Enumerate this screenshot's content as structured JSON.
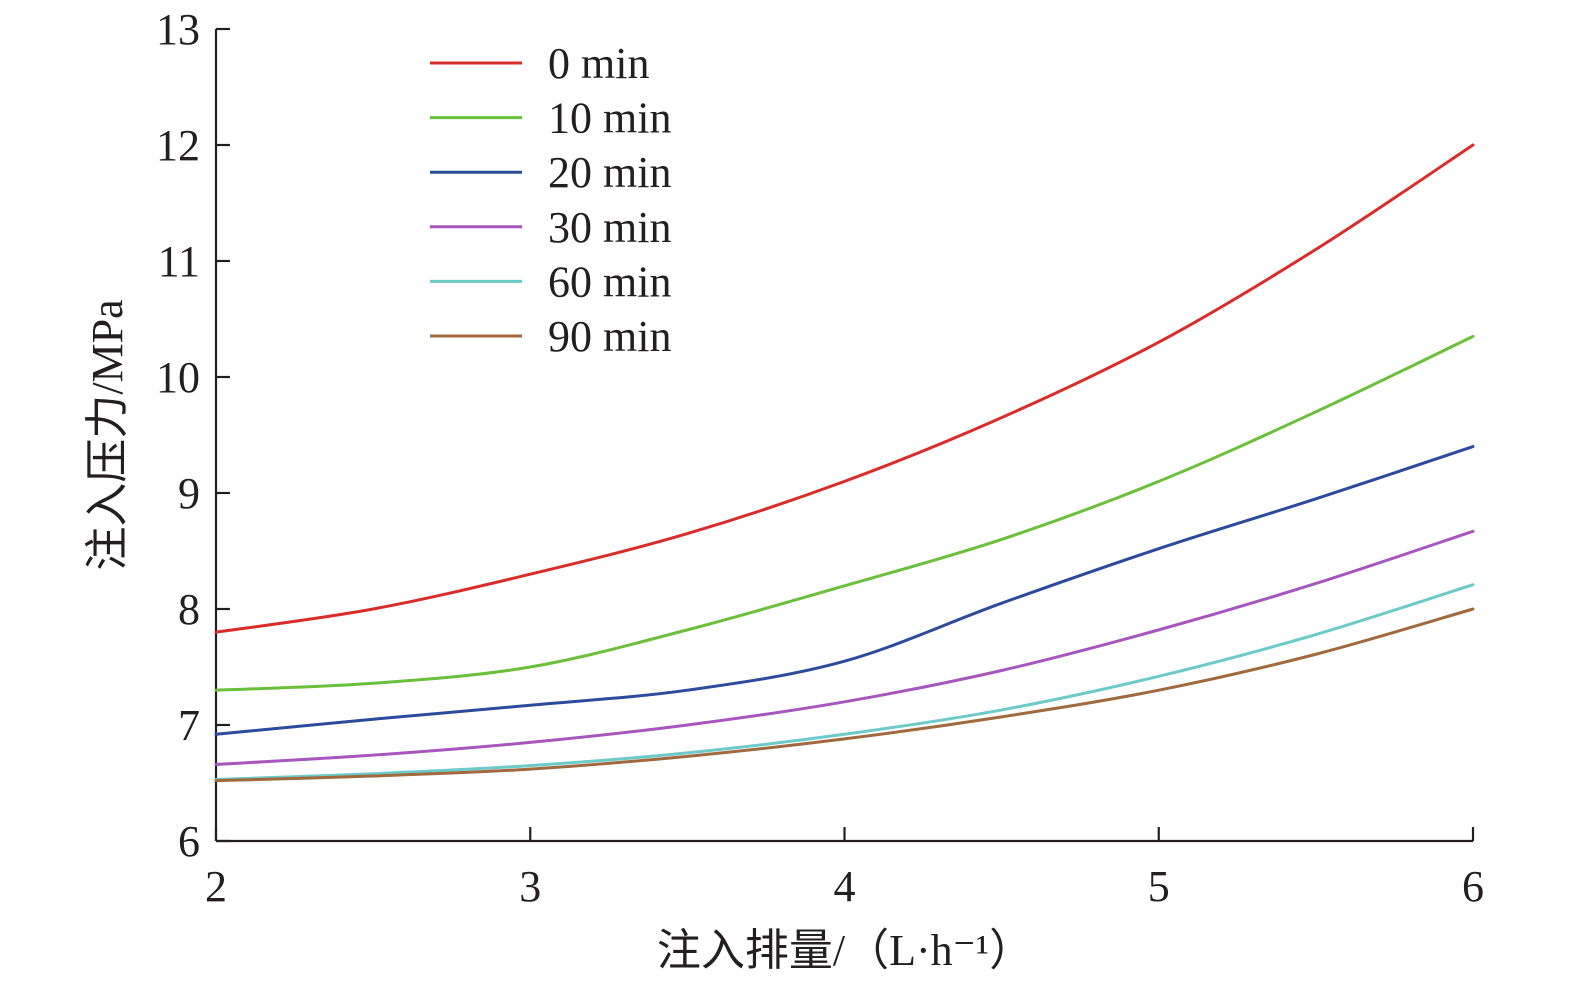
{
  "chart_data": {
    "type": "line",
    "title": "",
    "xlabel": "注入排量/（L·h⁻¹）",
    "ylabel": "注入压力/MPa",
    "xlim": [
      2,
      6
    ],
    "ylim": [
      6,
      13
    ],
    "x_ticks": [
      "2",
      "3",
      "4",
      "5",
      "6"
    ],
    "y_ticks": [
      "6",
      "7",
      "8",
      "9",
      "10",
      "11",
      "12",
      "13"
    ],
    "grid": false,
    "legend_position": "top-left",
    "x": [
      2.0,
      2.5,
      3.0,
      3.5,
      4.0,
      4.5,
      5.0,
      5.5,
      6.0
    ],
    "series": [
      {
        "name": "0 min",
        "color": "#d92d2a",
        "values": [
          7.8,
          8.0,
          8.3,
          8.65,
          9.1,
          9.65,
          10.3,
          11.1,
          12.0
        ]
      },
      {
        "name": "10 min",
        "color": "#6abf3b",
        "values": [
          7.3,
          7.36,
          7.5,
          7.82,
          8.2,
          8.6,
          9.1,
          9.7,
          10.35
        ]
      },
      {
        "name": "20 min",
        "color": "#2b4b9c",
        "values": [
          6.92,
          7.05,
          7.17,
          7.3,
          7.55,
          8.05,
          8.52,
          8.95,
          9.4
        ]
      },
      {
        "name": "30 min",
        "color": "#a656bd",
        "values": [
          6.66,
          6.74,
          6.85,
          7.0,
          7.2,
          7.47,
          7.82,
          8.22,
          8.67
        ]
      },
      {
        "name": "60 min",
        "color": "#6ccac9",
        "values": [
          6.53,
          6.58,
          6.65,
          6.76,
          6.92,
          7.13,
          7.42,
          7.78,
          8.21
        ]
      },
      {
        "name": "90 min",
        "color": "#a0693e",
        "values": [
          6.52,
          6.56,
          6.62,
          6.73,
          6.88,
          7.07,
          7.3,
          7.61,
          8.0
        ]
      }
    ]
  }
}
